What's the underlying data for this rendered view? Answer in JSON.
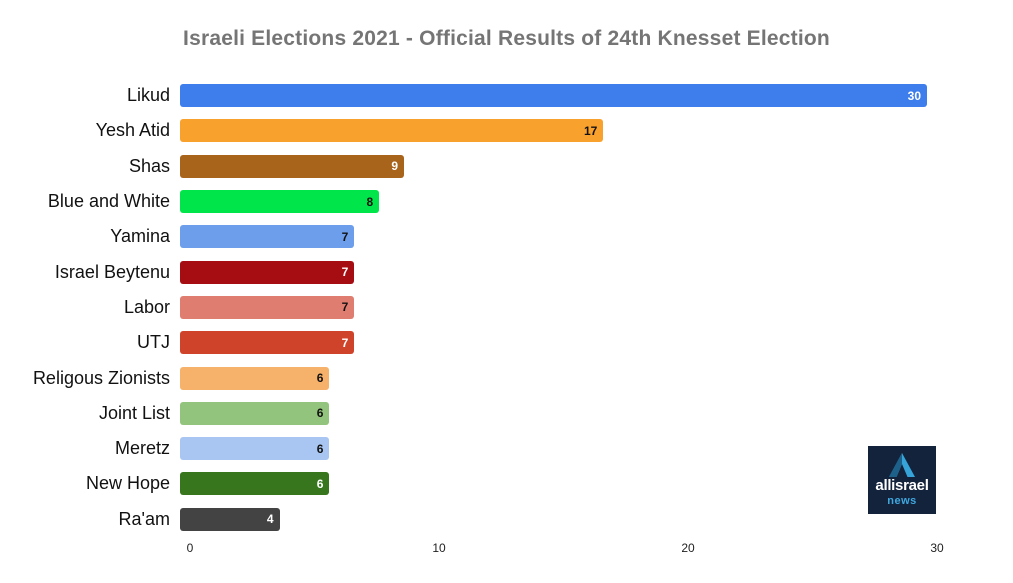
{
  "chart_data": {
    "type": "bar",
    "orientation": "horizontal",
    "title": "Israeli Elections 2021 - Official Results of 24th Knesset Election",
    "title_color": "#757575",
    "categories": [
      "Likud",
      "Yesh Atid",
      "Shas",
      "Blue and White",
      "Yamina",
      "Israel Beytenu",
      "Labor",
      "UTJ",
      "Religous Zionists",
      "Joint List",
      "Meretz",
      "New Hope",
      "Ra'am"
    ],
    "values": [
      30,
      17,
      9,
      8,
      7,
      7,
      7,
      7,
      6,
      6,
      6,
      6,
      4
    ],
    "bar_colors": [
      "#3D7EEC",
      "#F9A12D",
      "#A9641C",
      "#00E54A",
      "#6D9EEB",
      "#A60D13",
      "#DF7E70",
      "#D0432B",
      "#F6B26B",
      "#93C47D",
      "#A9C6F2",
      "#38761D",
      "#434343"
    ],
    "value_label_colors": [
      "#ffffff",
      "#111111",
      "#ffffff",
      "#111111",
      "#111111",
      "#ffffff",
      "#111111",
      "#ffffff",
      "#111111",
      "#111111",
      "#111111",
      "#ffffff",
      "#ffffff"
    ],
    "x_ticks": [
      0,
      10,
      20,
      30
    ],
    "xlim": [
      0,
      30
    ],
    "xlabel": "",
    "ylabel": "",
    "grid": false,
    "legend": "none",
    "value_labels_shown": true
  },
  "logo": {
    "line1": "allisrael",
    "line2": "news",
    "bg_color": "#14233C",
    "line1_color": "#ffffff",
    "line2_color": "#3EA8DF",
    "icon": "mountain-a-icon",
    "icon_dark_color": "#1D6089",
    "icon_light_color": "#36A3D9"
  }
}
